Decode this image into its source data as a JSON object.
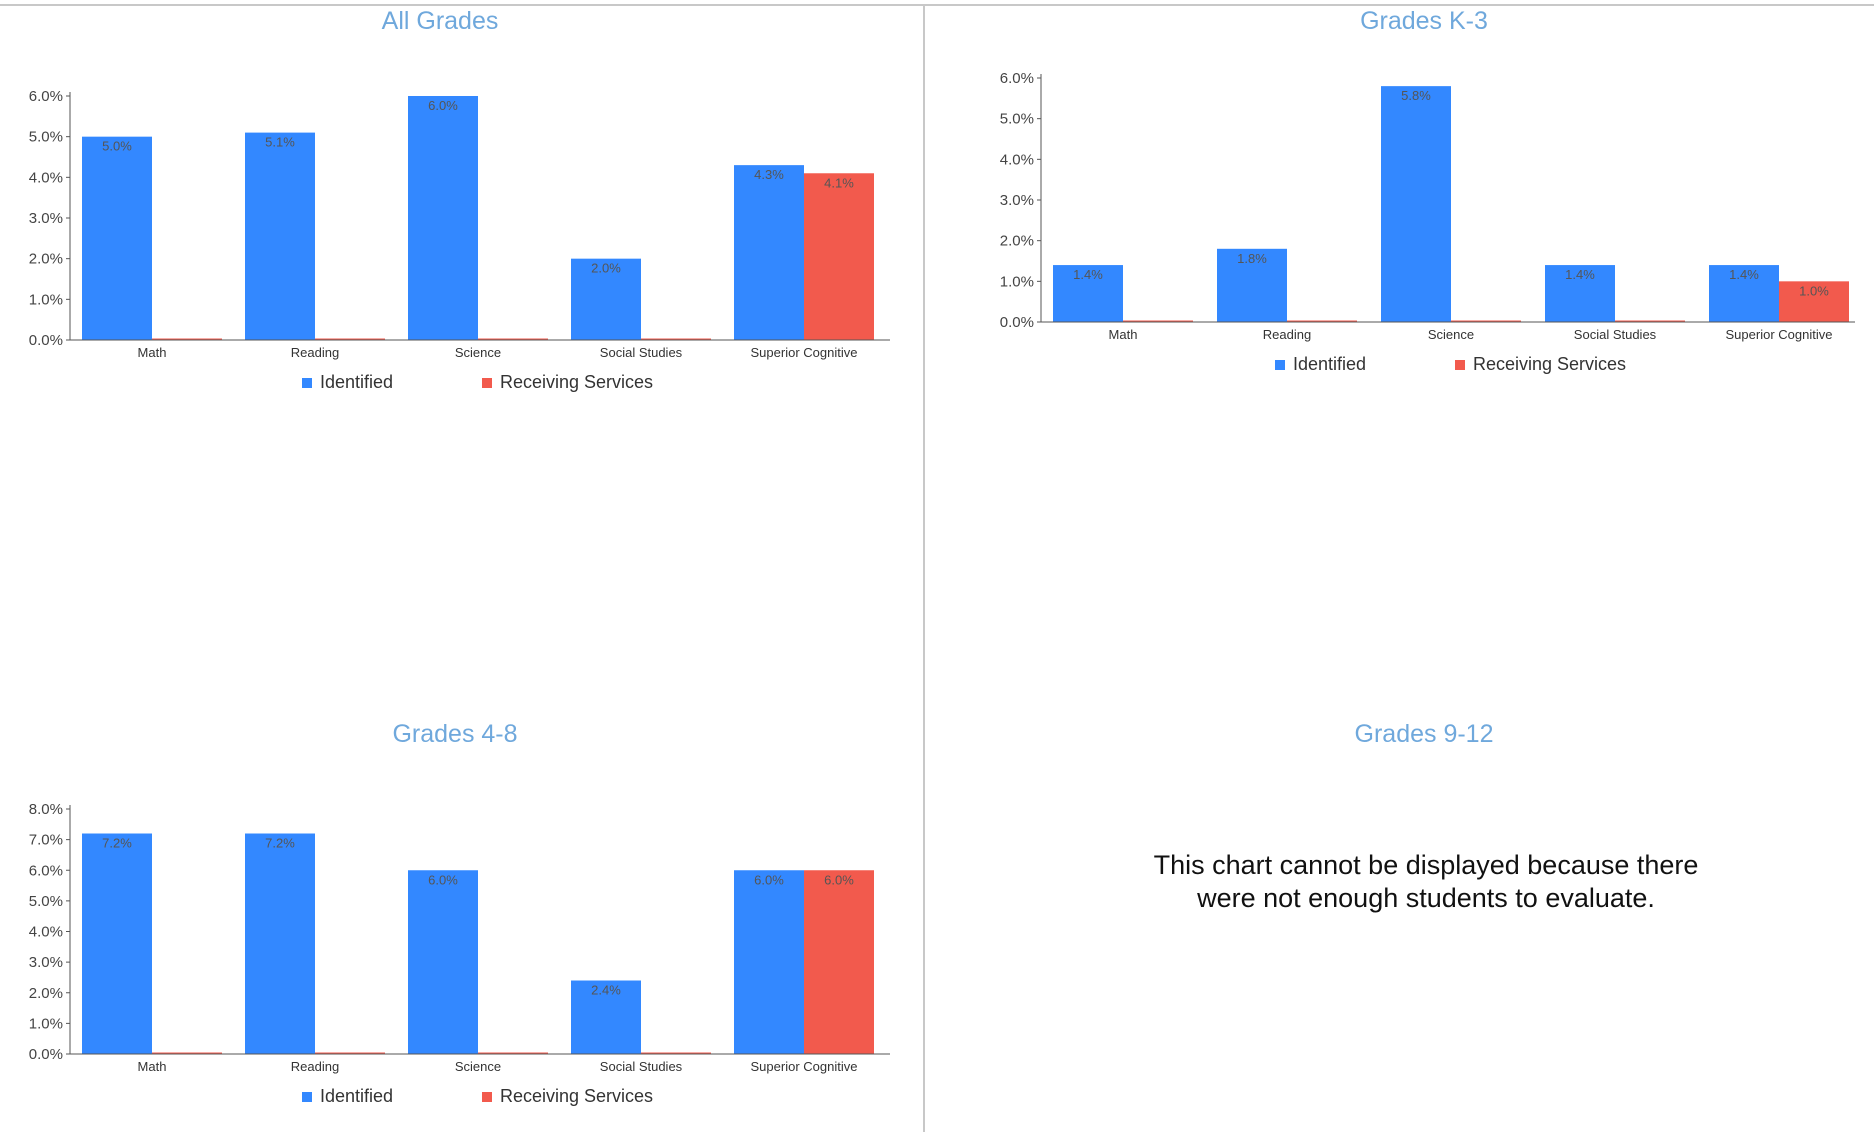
{
  "colors": {
    "identified": "#3388ff",
    "receiving": "#f25a4d",
    "title": "#6fa8dc",
    "divider": "#c8c8c8",
    "axis": "#555555"
  },
  "legend": {
    "identified": "Identified",
    "receiving": "Receiving Services"
  },
  "panels": [
    {
      "title": "All Grades",
      "has_chart": true
    },
    {
      "title": "Grades K-3",
      "has_chart": true
    },
    {
      "title": "Grades 4-8",
      "has_chart": true
    },
    {
      "title": "Grades 9-12",
      "has_chart": false,
      "message_lines": [
        "This chart cannot be displayed because there",
        "were not enough students to evaluate."
      ]
    }
  ],
  "chart_data": [
    {
      "type": "bar",
      "title": "All Grades",
      "categories": [
        "Math",
        "Reading",
        "Science",
        "Social Studies",
        "Superior Cognitive"
      ],
      "series": [
        {
          "name": "Identified",
          "values": [
            5.0,
            5.1,
            6.0,
            2.0,
            4.3
          ],
          "labels": [
            "5.0%",
            "5.1%",
            "6.0%",
            "2.0%",
            "4.3%"
          ]
        },
        {
          "name": "Receiving Services",
          "values": [
            0,
            0,
            0,
            0,
            4.1
          ],
          "labels": [
            "",
            "",
            "",
            "",
            "4.1%"
          ]
        }
      ],
      "yticks": [
        "0.0%",
        "1.0%",
        "2.0%",
        "3.0%",
        "4.0%",
        "5.0%",
        "6.0%"
      ],
      "ylim": [
        0,
        6
      ],
      "legend_position": "bottom",
      "grid": false
    },
    {
      "type": "bar",
      "title": "Grades K-3",
      "categories": [
        "Math",
        "Reading",
        "Science",
        "Social Studies",
        "Superior Cognitive"
      ],
      "series": [
        {
          "name": "Identified",
          "values": [
            1.4,
            1.8,
            5.8,
            1.4,
            1.4
          ],
          "labels": [
            "1.4%",
            "1.8%",
            "5.8%",
            "1.4%",
            "1.4%"
          ]
        },
        {
          "name": "Receiving Services",
          "values": [
            0,
            0,
            0,
            0,
            1.0
          ],
          "labels": [
            "",
            "",
            "",
            "",
            "1.0%"
          ]
        }
      ],
      "yticks": [
        "0.0%",
        "1.0%",
        "2.0%",
        "3.0%",
        "4.0%",
        "5.0%",
        "6.0%"
      ],
      "ylim": [
        0,
        6
      ],
      "legend_position": "bottom",
      "grid": false
    },
    {
      "type": "bar",
      "title": "Grades 4-8",
      "categories": [
        "Math",
        "Reading",
        "Science",
        "Social Studies",
        "Superior Cognitive"
      ],
      "series": [
        {
          "name": "Identified",
          "values": [
            7.2,
            7.2,
            6.0,
            2.4,
            6.0
          ],
          "labels": [
            "7.2%",
            "7.2%",
            "6.0%",
            "2.4%",
            "6.0%"
          ]
        },
        {
          "name": "Receiving Services",
          "values": [
            0,
            0,
            0,
            0,
            6.0
          ],
          "labels": [
            "",
            "",
            "",
            "",
            "6.0%"
          ]
        }
      ],
      "yticks": [
        "0.0%",
        "1.0%",
        "2.0%",
        "3.0%",
        "4.0%",
        "5.0%",
        "6.0%",
        "7.0%",
        "8.0%"
      ],
      "ylim": [
        0,
        8
      ],
      "legend_position": "bottom",
      "grid": false
    }
  ]
}
